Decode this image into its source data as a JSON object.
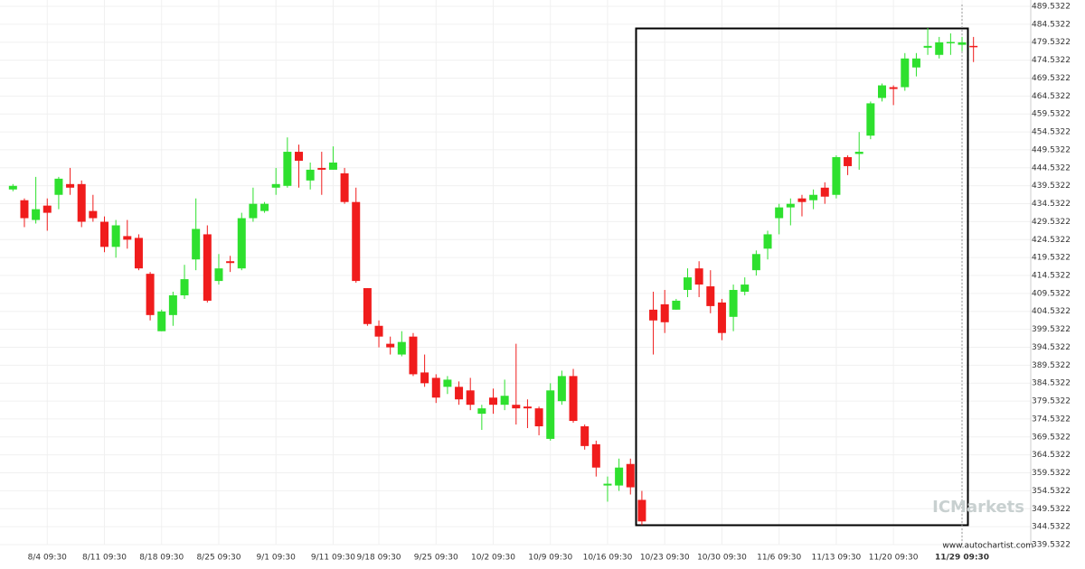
{
  "chart_data": {
    "type": "candlestick",
    "categories": [
      null,
      null,
      null,
      "8/4 09:30",
      null,
      null,
      null,
      null,
      "8/11 09:30",
      null,
      null,
      null,
      null,
      "8/18 09:30",
      null,
      null,
      null,
      null,
      "8/25 09:30",
      null,
      null,
      null,
      null,
      "9/1 09:30",
      null,
      null,
      null,
      null,
      "9/11 09:30",
      null,
      null,
      null,
      "9/18 09:30",
      null,
      null,
      null,
      null,
      "9/25 09:30",
      null,
      null,
      null,
      null,
      "10/2 09:30",
      null,
      null,
      null,
      null,
      "10/9 09:30",
      null,
      null,
      null,
      null,
      "10/16 09:30",
      null,
      null,
      null,
      null,
      "10/23 09:30",
      null,
      null,
      null,
      null,
      "10/30 09:30",
      null,
      null,
      null,
      null,
      "11/6 09:30",
      null,
      null,
      null,
      null,
      "11/13 09:30",
      null,
      null,
      null,
      null,
      "11/20 09:30",
      null,
      null,
      null,
      null,
      null,
      "11/29 09:30",
      null
    ],
    "open": [
      438.5,
      435.5,
      430,
      434,
      437,
      440,
      440,
      432.5,
      429.5,
      422.5,
      425.5,
      425,
      415,
      399,
      403.5,
      409,
      419,
      426,
      413,
      418.5,
      416.5,
      430.5,
      432.5,
      439,
      439.5,
      449,
      441,
      444.5,
      444,
      443,
      435,
      411,
      400.5,
      395.5,
      392.5,
      397.5,
      387.5,
      386,
      383.5,
      383.5,
      382.5,
      376,
      380.5,
      378.5,
      378.5,
      378,
      377.5,
      369,
      379.5,
      386.5,
      372.5,
      367.5,
      356,
      356,
      362,
      352,
      405,
      406.5,
      405,
      410.5,
      416.5,
      411.5,
      407,
      403,
      410,
      416,
      422,
      430.5,
      433.5,
      436,
      435.5,
      439,
      437,
      447.5,
      448.4,
      453.5,
      464,
      467,
      467,
      472.5,
      478,
      476,
      479.3,
      478.8,
      478.5
    ],
    "high": [
      440,
      436,
      442,
      436,
      442,
      444.5,
      441,
      437,
      431,
      430,
      430,
      426,
      415.5,
      405,
      410,
      417.5,
      436,
      428.5,
      420.5,
      420,
      432,
      439,
      435,
      444.5,
      453,
      451,
      446,
      449,
      450.5,
      444.5,
      439,
      411,
      402,
      397.5,
      399,
      398.5,
      392.5,
      387,
      386.5,
      385,
      386,
      378.5,
      383,
      385.5,
      395.5,
      380,
      378,
      384.5,
      388,
      388.5,
      373,
      368.5,
      358.5,
      363.5,
      363.5,
      354.5,
      410,
      410.5,
      408,
      416.5,
      418.5,
      416,
      408,
      412,
      414,
      421.5,
      427,
      434.5,
      436,
      437,
      438.5,
      440.5,
      448,
      448,
      454.5,
      463,
      468,
      467.5,
      476.5,
      476.5,
      483.5,
      481,
      482,
      481,
      481
    ],
    "low": [
      438,
      428,
      429,
      427,
      433,
      437,
      428,
      429.5,
      421,
      419.5,
      422,
      416,
      402,
      399,
      400.5,
      408,
      416,
      407,
      412,
      415.5,
      416,
      429.5,
      432,
      437,
      439,
      439,
      438.5,
      437,
      444,
      434.5,
      412.5,
      400.5,
      394.5,
      392.5,
      392,
      386.5,
      383.5,
      379,
      381.5,
      378.5,
      377,
      371.5,
      376,
      377,
      373,
      372,
      370,
      368.5,
      378.5,
      373.5,
      366,
      358.5,
      351.5,
      354.5,
      353.5,
      345,
      392.5,
      398.5,
      405,
      408.5,
      408.5,
      404,
      396.5,
      399,
      409,
      414.5,
      419,
      426,
      428.5,
      431,
      433,
      434.5,
      436,
      442.5,
      444,
      452.5,
      463,
      462,
      466,
      470,
      476,
      475,
      476,
      477,
      474
    ],
    "close": [
      439.5,
      430.5,
      433,
      432,
      441.5,
      439,
      429.5,
      430.5,
      422.5,
      428.5,
      424.5,
      416.5,
      403.5,
      404.5,
      409,
      413.5,
      427.5,
      407.5,
      416.5,
      418,
      430.5,
      434.5,
      434.5,
      440,
      449,
      446.5,
      444,
      444,
      446,
      435,
      413,
      401,
      397.5,
      394.5,
      396,
      387,
      384.5,
      380.5,
      385.5,
      380,
      378.5,
      377.5,
      378.5,
      381,
      377.5,
      377.5,
      372.5,
      382.5,
      386.5,
      374,
      367,
      361,
      356.5,
      361,
      355.5,
      346,
      402,
      401.5,
      407.5,
      414,
      412,
      406,
      398.5,
      410.5,
      412,
      420.5,
      426,
      433.5,
      434.5,
      435,
      437,
      436.5,
      447.5,
      445,
      449,
      462.5,
      467.5,
      466.5,
      475,
      475,
      478.5,
      479.5,
      479.6,
      479.5,
      478.2
    ],
    "up_color": "#2ee02e",
    "down_color": "#f01c1c",
    "ylim": [
      339.5322,
      489.5322
    ],
    "yticks": [
      339.5322,
      344.5322,
      349.5322,
      354.5322,
      359.5322,
      364.5322,
      369.5322,
      374.5322,
      379.5322,
      384.5322,
      389.5322,
      394.5322,
      399.5322,
      404.5322,
      409.5322,
      414.5322,
      419.5322,
      424.5322,
      429.5322,
      434.5322,
      439.5322,
      444.5322,
      449.5322,
      454.5322,
      459.5322,
      464.5322,
      469.5322,
      474.5322,
      479.5322,
      484.5322,
      489.5322
    ],
    "grid": true,
    "watermark": "ICMarkets",
    "source": "www.autochartist.com"
  }
}
